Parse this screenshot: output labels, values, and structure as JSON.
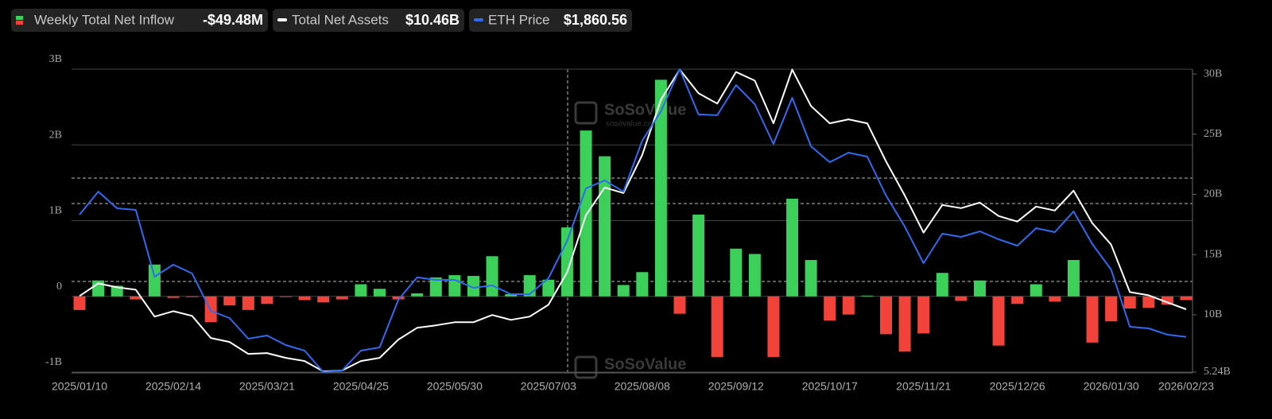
{
  "chart_data": {
    "type": "combo",
    "categories": [
      "2025/01/10",
      null,
      null,
      null,
      null,
      "2025/02/14",
      null,
      null,
      null,
      null,
      "2025/03/21",
      null,
      null,
      null,
      null,
      "2025/04/25",
      null,
      null,
      null,
      null,
      "2025/05/30",
      null,
      null,
      null,
      null,
      "2025/07/03",
      null,
      null,
      null,
      null,
      "2025/08/08",
      null,
      null,
      null,
      null,
      "2025/09/12",
      null,
      null,
      null,
      null,
      "2025/10/17",
      null,
      null,
      null,
      null,
      "2025/11/21",
      null,
      null,
      null,
      null,
      "2025/12/26",
      null,
      null,
      null,
      null,
      "2026/01/30",
      null,
      null,
      null,
      "2026/02/23"
    ],
    "series": [
      {
        "name": "Weekly Total Net Inflow",
        "type": "bar",
        "color": "#3ccf5a",
        "negative_color": "#f2433a",
        "values": [
          -0.18,
          0.21,
          0.14,
          -0.04,
          0.42,
          -0.02,
          -0.01,
          -0.34,
          -0.12,
          -0.18,
          -0.1,
          -0.01,
          -0.05,
          -0.08,
          -0.04,
          0.16,
          0.1,
          -0.04,
          0.04,
          0.25,
          0.28,
          0.27,
          0.53,
          0.03,
          0.28,
          0.22,
          0.91,
          2.19,
          1.85,
          0.15,
          0.32,
          2.86,
          -0.23,
          1.08,
          -0.8,
          0.63,
          0.56,
          -0.8,
          1.29,
          0.48,
          -0.32,
          -0.24,
          0.01,
          -0.5,
          -0.73,
          -0.49,
          0.31,
          -0.06,
          0.21,
          -0.65,
          -0.1,
          0.16,
          -0.07,
          0.48,
          -0.61,
          -0.33,
          -0.16,
          -0.15,
          -0.11,
          -0.04948
        ],
        "value_labels": [
          null,
          null,
          null,
          null,
          null,
          null,
          null,
          null,
          null,
          null,
          null,
          null,
          null,
          null,
          null,
          null,
          null,
          null,
          null,
          null,
          null,
          null,
          null,
          null,
          null,
          null,
          null,
          null,
          null,
          null,
          null,
          null,
          null,
          null,
          null,
          null,
          null,
          null,
          null,
          null,
          null,
          null,
          null,
          null,
          null,
          null,
          null,
          null,
          null,
          null,
          null,
          null,
          null,
          null,
          null,
          null,
          null,
          null,
          null,
          "-$49.48M"
        ]
      },
      {
        "name": "Total Net Assets",
        "type": "line",
        "axis": "y2",
        "color": "#ffffff",
        "values": [
          11.56,
          12.6,
          12.28,
          12.08,
          9.85,
          10.3,
          9.91,
          8.07,
          7.74,
          6.75,
          6.82,
          6.42,
          6.16,
          5.3,
          5.37,
          6.16,
          6.42,
          7.94,
          8.92,
          9.12,
          9.38,
          9.38,
          9.98,
          9.58,
          9.85,
          10.83,
          13.53,
          18.27,
          20.57,
          20.11,
          23.27,
          27.87,
          30.37,
          28.4,
          27.54,
          30.17,
          29.45,
          25.9,
          30.37,
          27.34,
          25.9,
          26.23,
          25.9,
          22.74,
          19.91,
          16.82,
          19.12,
          18.86,
          19.32,
          18.2,
          17.74,
          18.99,
          18.66,
          20.31,
          17.61,
          15.83,
          11.88,
          11.62,
          11.03,
          10.46
        ],
        "value_labels": [
          null,
          null,
          null,
          null,
          null,
          null,
          null,
          null,
          null,
          null,
          null,
          null,
          null,
          null,
          null,
          null,
          null,
          null,
          null,
          null,
          null,
          null,
          null,
          null,
          null,
          null,
          null,
          null,
          null,
          null,
          null,
          null,
          null,
          null,
          null,
          null,
          null,
          null,
          null,
          null,
          null,
          null,
          null,
          null,
          null,
          null,
          null,
          null,
          null,
          null,
          null,
          null,
          null,
          null,
          null,
          null,
          null,
          null,
          null,
          "$10.46B"
        ]
      },
      {
        "name": "ETH Price",
        "type": "line",
        "color": "#2f6bf0",
        "values": [
          3216,
          3472,
          3287,
          3269,
          2528,
          2661,
          2564,
          2149,
          2070,
          1840,
          1876,
          1770,
          1708,
          1470,
          1488,
          1708,
          1743,
          2273,
          2520,
          2493,
          2493,
          2405,
          2431,
          2334,
          2334,
          2511,
          2925,
          3507,
          3596,
          3472,
          4037,
          4363,
          4830,
          4328,
          4319,
          4654,
          4442,
          4001,
          4513,
          3975,
          3798,
          3904,
          3860,
          3428,
          3084,
          2678,
          3005,
          2969,
          3031,
          2943,
          2872,
          3066,
          3022,
          3252,
          2890,
          2608,
          1973,
          1955,
          1885,
          1860.56
        ],
        "value_labels": [
          null,
          null,
          null,
          null,
          null,
          null,
          null,
          null,
          null,
          null,
          null,
          null,
          null,
          null,
          null,
          null,
          null,
          null,
          null,
          null,
          null,
          null,
          null,
          null,
          null,
          null,
          null,
          null,
          null,
          null,
          null,
          null,
          null,
          null,
          null,
          null,
          null,
          null,
          null,
          null,
          null,
          null,
          null,
          null,
          null,
          null,
          null,
          null,
          null,
          null,
          null,
          null,
          null,
          null,
          null,
          null,
          null,
          null,
          null,
          "$1,860.56"
        ]
      }
    ],
    "ylim": [
      -1,
      3
    ],
    "yticks": [
      {
        "value": -1,
        "label": "-1B"
      },
      0,
      {
        "value": 1,
        "label": "1B"
      },
      {
        "value": 2,
        "label": "2B"
      },
      {
        "value": 3,
        "label": "3B"
      }
    ],
    "y2lim": [
      5.24,
      30.4
    ],
    "y2ticks": [
      {
        "value": 5.24,
        "label": "5.24B"
      },
      {
        "value": 10,
        "label": "10B"
      },
      {
        "value": 15,
        "label": "15B"
      },
      {
        "value": 20,
        "label": "20B"
      },
      {
        "value": 25,
        "label": "25B"
      },
      {
        "value": 30,
        "label": "30B"
      }
    ],
    "grid": true,
    "watermark": {
      "name": "SoSoValue",
      "url": "sosovalue.com"
    }
  }
}
